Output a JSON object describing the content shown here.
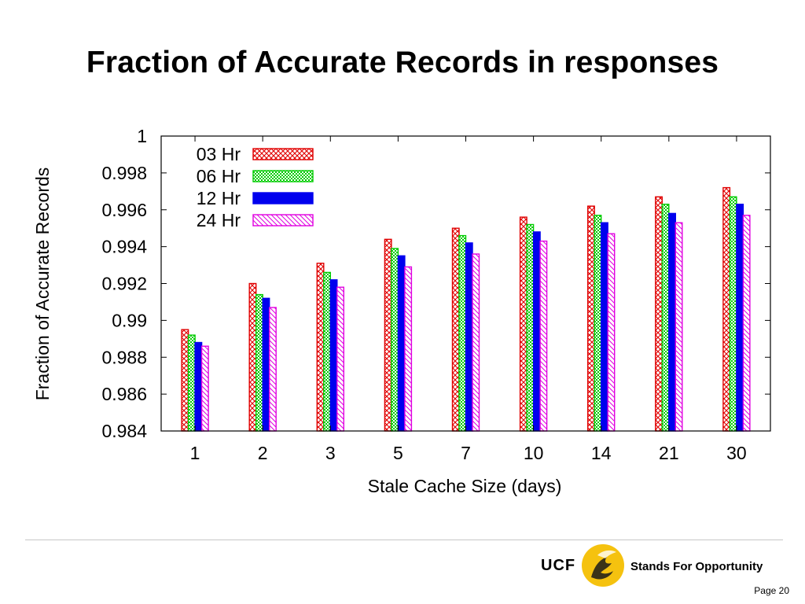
{
  "slide": {
    "title": "Fraction of Accurate Records in responses",
    "page_label": "Page 20"
  },
  "logo": {
    "wordmark": "UCF",
    "tagline": "Stands For Opportunity",
    "gold": "#f5c20f"
  },
  "chart_data": {
    "type": "bar",
    "xlabel": "Stale Cache Size (days)",
    "ylabel": "Fraction of Accurate Records",
    "categories": [
      "1",
      "2",
      "3",
      "5",
      "7",
      "10",
      "14",
      "21",
      "30"
    ],
    "ylim": [
      0.984,
      1
    ],
    "yticks": [
      "0.984",
      "0.986",
      "0.988",
      "0.99",
      "0.992",
      "0.994",
      "0.996",
      "0.998",
      "1"
    ],
    "grid": false,
    "legend_position": "top-left",
    "series": [
      {
        "name": "03 Hr",
        "color": "#e00000",
        "pattern": "crosshatch",
        "values": [
          0.9895,
          0.992,
          0.9931,
          0.9944,
          0.995,
          0.9956,
          0.9962,
          0.9967,
          0.9972
        ]
      },
      {
        "name": "06 Hr",
        "color": "#00cc00",
        "pattern": "dots",
        "values": [
          0.9892,
          0.9914,
          0.9926,
          0.9939,
          0.9946,
          0.9952,
          0.9957,
          0.9963,
          0.9967
        ]
      },
      {
        "name": "12 Hr",
        "color": "#0000ee",
        "pattern": "solid",
        "values": [
          0.9888,
          0.9912,
          0.9922,
          0.9935,
          0.9942,
          0.9948,
          0.9953,
          0.9958,
          0.9963
        ]
      },
      {
        "name": "24 Hr",
        "color": "#e000e0",
        "pattern": "diagonal",
        "values": [
          0.9886,
          0.9907,
          0.9918,
          0.9929,
          0.9936,
          0.9943,
          0.9947,
          0.9953,
          0.9957
        ]
      }
    ]
  }
}
